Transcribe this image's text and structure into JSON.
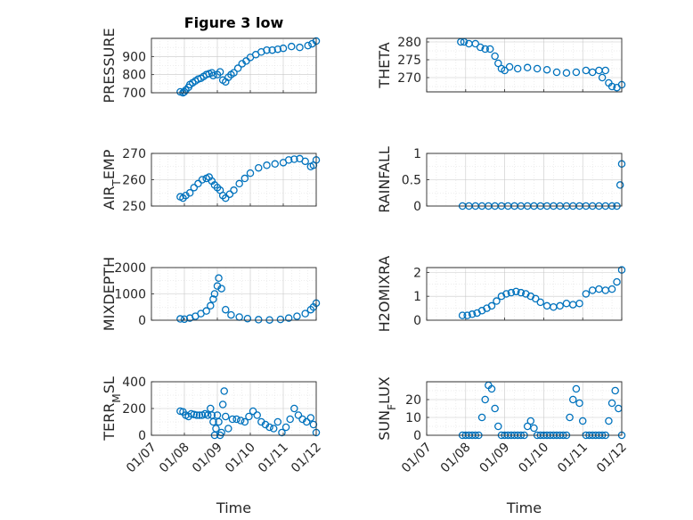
{
  "colors": {
    "marker": "#0072bd",
    "axis": "#262626"
  },
  "chart_data": [
    {
      "type": "scatter",
      "marker": "circle",
      "title": "Figure 3 low",
      "ylabel": "PRESSURE",
      "ylabel_parts": [
        {
          "t": "PRESSURE"
        }
      ],
      "xlabel": "",
      "grid": true,
      "minor_grid": true,
      "xlim": [
        "01/07",
        "01/12"
      ],
      "ylim": [
        700,
        1000
      ],
      "yticks": [
        700,
        800,
        900
      ],
      "yminor": [
        750,
        850,
        950
      ],
      "xticks": [
        "01/07",
        "01/08",
        "01/09",
        "01/10",
        "01/11",
        "01/12"
      ],
      "xticklabels_shown": false,
      "series": [
        {
          "x": [
            "01/07 21:00",
            "01/07 23:00",
            "01/08 00:00",
            "01/08 01:00",
            "01/08 03:00",
            "01/08 04:00",
            "01/08 06:00",
            "01/08 08:00",
            "01/08 10:00",
            "01/08 12:00",
            "01/08 14:00",
            "01/08 16:00",
            "01/08 18:00",
            "01/08 20:00",
            "01/08 21:00",
            "01/09 00:00",
            "01/09 02:00",
            "01/09 04:00",
            "01/09 06:00",
            "01/09 08:00",
            "01/09 10:00",
            "01/09 12:00",
            "01/09 15:00",
            "01/09 18:00",
            "01/09 21:00",
            "01/10 00:00",
            "01/10 04:00",
            "01/10 08:00",
            "01/10 12:00",
            "01/10 16:00",
            "01/10 20:00",
            "01/11 00:00",
            "01/11 06:00",
            "01/11 12:00",
            "01/11 18:00",
            "01/11 21:00",
            "01/12 00:00"
          ],
          "y": [
            705,
            700,
            705,
            715,
            730,
            745,
            755,
            765,
            775,
            780,
            790,
            800,
            805,
            810,
            795,
            800,
            815,
            770,
            760,
            785,
            800,
            810,
            835,
            860,
            875,
            895,
            910,
            925,
            935,
            935,
            940,
            945,
            955,
            950,
            960,
            970,
            985
          ]
        }
      ]
    },
    {
      "type": "scatter",
      "marker": "circle",
      "title": "",
      "ylabel": "THETA",
      "ylabel_parts": [
        {
          "t": "THETA"
        }
      ],
      "xlabel": "",
      "grid": true,
      "minor_grid": true,
      "xlim": [
        "01/07",
        "01/12"
      ],
      "ylim": [
        266,
        281
      ],
      "yticks": [
        270,
        275,
        280
      ],
      "yminor": [
        267.5,
        272.5,
        277.5
      ],
      "xticks": [
        "01/07",
        "01/08",
        "01/09",
        "01/10",
        "01/11",
        "01/12"
      ],
      "xticklabels_shown": false,
      "series": [
        {
          "x": [
            "01/07 21:00",
            "01/07 23:00",
            "01/08 02:00",
            "01/08 06:00",
            "01/08 09:00",
            "01/08 12:00",
            "01/08 15:00",
            "01/08 18:00",
            "01/08 20:00",
            "01/08 22:00",
            "01/09 00:00",
            "01/09 03:00",
            "01/09 08:00",
            "01/09 14:00",
            "01/09 20:00",
            "01/10 02:00",
            "01/10 08:00",
            "01/10 14:00",
            "01/10 20:00",
            "01/11 02:00",
            "01/11 06:00",
            "01/11 10:00",
            "01/11 12:00",
            "01/11 14:00",
            "01/11 16:00",
            "01/11 18:00",
            "01/11 21:00",
            "01/12 00:00"
          ],
          "y": [
            280,
            280,
            279.5,
            279.5,
            278.5,
            278,
            278,
            276,
            274,
            272.5,
            272,
            273,
            272.5,
            272.8,
            272.5,
            272.2,
            271.5,
            271.3,
            271.5,
            272,
            271.5,
            272,
            270,
            272,
            268.5,
            267.5,
            267.2,
            268
          ]
        }
      ]
    },
    {
      "type": "scatter",
      "marker": "circle",
      "title": "",
      "ylabel": "AIR_TEMP",
      "ylabel_parts": [
        {
          "t": "AIR"
        },
        {
          "t": "T",
          "sub": true
        },
        {
          "t": "EMP"
        }
      ],
      "xlabel": "",
      "grid": true,
      "minor_grid": true,
      "xlim": [
        "01/07",
        "01/12"
      ],
      "ylim": [
        250,
        270
      ],
      "yticks": [
        250,
        260,
        270
      ],
      "yminor": [
        255,
        265
      ],
      "xticks": [
        "01/07",
        "01/08",
        "01/09",
        "01/10",
        "01/11",
        "01/12"
      ],
      "xticklabels_shown": false,
      "series": [
        {
          "x": [
            "01/07 21:00",
            "01/07 23:00",
            "01/08 01:00",
            "01/08 04:00",
            "01/08 07:00",
            "01/08 10:00",
            "01/08 13:00",
            "01/08 16:00",
            "01/08 18:00",
            "01/08 20:00",
            "01/08 22:00",
            "01/09 00:00",
            "01/09 02:00",
            "01/09 04:00",
            "01/09 06:00",
            "01/09 09:00",
            "01/09 12:00",
            "01/09 16:00",
            "01/09 20:00",
            "01/10 00:00",
            "01/10 06:00",
            "01/10 12:00",
            "01/10 18:00",
            "01/11 00:00",
            "01/11 04:00",
            "01/11 08:00",
            "01/11 12:00",
            "01/11 16:00",
            "01/11 20:00",
            "01/11 22:00",
            "01/12 00:00"
          ],
          "y": [
            253.5,
            253,
            254,
            255,
            257,
            258.5,
            260,
            260.5,
            261,
            259.5,
            258,
            257,
            256,
            254,
            253,
            254.5,
            256,
            258.5,
            260.5,
            262.5,
            264.5,
            265.5,
            266,
            266.5,
            267.5,
            267.8,
            268,
            267,
            265,
            265.5,
            267.5
          ]
        }
      ]
    },
    {
      "type": "scatter",
      "marker": "circle",
      "title": "",
      "ylabel": "RAINFALL",
      "ylabel_parts": [
        {
          "t": "RAINFALL"
        }
      ],
      "xlabel": "",
      "grid": true,
      "minor_grid": true,
      "xlim": [
        "01/07",
        "01/12"
      ],
      "ylim": [
        0,
        1
      ],
      "yticks": [
        0,
        0.5,
        1
      ],
      "yminor": [
        0.25,
        0.75
      ],
      "xticks": [
        "01/07",
        "01/08",
        "01/09",
        "01/10",
        "01/11",
        "01/12"
      ],
      "xticklabels_shown": false,
      "series": [
        {
          "x": [
            "01/07 22:00",
            "01/08 02:00",
            "01/08 06:00",
            "01/08 10:00",
            "01/08 14:00",
            "01/08 18:00",
            "01/08 22:00",
            "01/09 02:00",
            "01/09 06:00",
            "01/09 10:00",
            "01/09 14:00",
            "01/09 18:00",
            "01/09 22:00",
            "01/10 02:00",
            "01/10 06:00",
            "01/10 10:00",
            "01/10 14:00",
            "01/10 18:00",
            "01/10 22:00",
            "01/11 02:00",
            "01/11 06:00",
            "01/11 10:00",
            "01/11 14:00",
            "01/11 18:00",
            "01/11 21:00",
            "01/11 23:00",
            "01/12 00:00"
          ],
          "y": [
            0,
            0,
            0,
            0,
            0,
            0,
            0,
            0,
            0,
            0,
            0,
            0,
            0,
            0,
            0,
            0,
            0,
            0,
            0,
            0,
            0,
            0,
            0,
            0,
            0,
            0.4,
            0.8
          ]
        }
      ]
    },
    {
      "type": "scatter",
      "marker": "circle",
      "title": "",
      "ylabel": "MIXDEPTH",
      "ylabel_parts": [
        {
          "t": "MIXDEPTH"
        }
      ],
      "xlabel": "",
      "grid": true,
      "minor_grid": true,
      "xlim": [
        "01/07",
        "01/12"
      ],
      "ylim": [
        0,
        2000
      ],
      "yticks": [
        0,
        1000,
        2000
      ],
      "yminor": [
        500,
        1500
      ],
      "xticks": [
        "01/07",
        "01/08",
        "01/09",
        "01/10",
        "01/11",
        "01/12"
      ],
      "xticklabels_shown": false,
      "series": [
        {
          "x": [
            "01/07 21:00",
            "01/08 00:00",
            "01/08 04:00",
            "01/08 08:00",
            "01/08 12:00",
            "01/08 16:00",
            "01/08 19:00",
            "01/08 21:00",
            "01/08 22:00",
            "01/09 00:00",
            "01/09 01:00",
            "01/09 03:00",
            "01/09 06:00",
            "01/09 10:00",
            "01/09 16:00",
            "01/09 22:00",
            "01/10 06:00",
            "01/10 14:00",
            "01/10 22:00",
            "01/11 04:00",
            "01/11 10:00",
            "01/11 16:00",
            "01/11 20:00",
            "01/11 22:00",
            "01/12 00:00"
          ],
          "y": [
            50,
            40,
            80,
            150,
            250,
            350,
            550,
            800,
            1000,
            1300,
            1600,
            1200,
            400,
            200,
            120,
            60,
            20,
            10,
            30,
            80,
            150,
            250,
            400,
            500,
            650
          ]
        }
      ]
    },
    {
      "type": "scatter",
      "marker": "circle",
      "title": "",
      "ylabel": "H2OMIXRA",
      "ylabel_parts": [
        {
          "t": "H2OMIXRA"
        }
      ],
      "xlabel": "",
      "grid": true,
      "minor_grid": true,
      "xlim": [
        "01/07",
        "01/12"
      ],
      "ylim": [
        0,
        2.2
      ],
      "yticks": [
        0,
        1,
        2
      ],
      "yminor": [
        0.5,
        1.5
      ],
      "xticks": [
        "01/07",
        "01/08",
        "01/09",
        "01/10",
        "01/11",
        "01/12"
      ],
      "xticklabels_shown": false,
      "series": [
        {
          "x": [
            "01/07 22:00",
            "01/08 01:00",
            "01/08 04:00",
            "01/08 07:00",
            "01/08 10:00",
            "01/08 13:00",
            "01/08 16:00",
            "01/08 19:00",
            "01/08 22:00",
            "01/09 01:00",
            "01/09 04:00",
            "01/09 07:00",
            "01/09 10:00",
            "01/09 13:00",
            "01/09 16:00",
            "01/09 19:00",
            "01/09 22:00",
            "01/10 02:00",
            "01/10 06:00",
            "01/10 10:00",
            "01/10 14:00",
            "01/10 18:00",
            "01/10 22:00",
            "01/11 02:00",
            "01/11 06:00",
            "01/11 10:00",
            "01/11 14:00",
            "01/11 18:00",
            "01/11 21:00",
            "01/12 00:00"
          ],
          "y": [
            0.2,
            0.2,
            0.25,
            0.3,
            0.4,
            0.5,
            0.6,
            0.8,
            1.0,
            1.1,
            1.15,
            1.2,
            1.15,
            1.1,
            1.0,
            0.9,
            0.75,
            0.6,
            0.55,
            0.6,
            0.7,
            0.65,
            0.7,
            1.1,
            1.25,
            1.3,
            1.25,
            1.3,
            1.6,
            2.1
          ]
        }
      ]
    },
    {
      "type": "scatter",
      "marker": "circle",
      "title": "",
      "ylabel": "TERR_MSL",
      "ylabel_parts": [
        {
          "t": "TERR"
        },
        {
          "t": "M",
          "sub": true
        },
        {
          "t": "SL"
        }
      ],
      "xlabel": "Time",
      "grid": true,
      "minor_grid": true,
      "xlim": [
        "01/07",
        "01/12"
      ],
      "ylim": [
        0,
        400
      ],
      "yticks": [
        0,
        200,
        400
      ],
      "yminor": [
        100,
        300
      ],
      "xticks": [
        "01/07",
        "01/08",
        "01/09",
        "01/10",
        "01/11",
        "01/12"
      ],
      "xticklabels_shown": true,
      "series": [
        {
          "x": [
            "01/07 21:00",
            "01/07 23:00",
            "01/08 01:00",
            "01/08 03:00",
            "01/08 05:00",
            "01/08 07:00",
            "01/08 09:00",
            "01/08 11:00",
            "01/08 13:00",
            "01/08 15:00",
            "01/08 17:00",
            "01/08 19:00",
            "01/08 20:00",
            "01/08 21:00",
            "01/08 22:00",
            "01/08 23:00",
            "01/09 00:00",
            "01/09 01:00",
            "01/09 02:00",
            "01/09 03:00",
            "01/09 04:00",
            "01/09 05:00",
            "01/09 06:00",
            "01/09 08:00",
            "01/09 11:00",
            "01/09 14:00",
            "01/09 17:00",
            "01/09 20:00",
            "01/09 23:00",
            "01/10 02:00",
            "01/10 05:00",
            "01/10 08:00",
            "01/10 11:00",
            "01/10 14:00",
            "01/10 17:00",
            "01/10 20:00",
            "01/10 23:00",
            "01/11 02:00",
            "01/11 05:00",
            "01/11 08:00",
            "01/11 11:00",
            "01/11 14:00",
            "01/11 17:00",
            "01/11 20:00",
            "01/11 22:00",
            "01/12 00:00"
          ],
          "y": [
            180,
            175,
            150,
            140,
            160,
            155,
            150,
            150,
            150,
            160,
            150,
            200,
            150,
            100,
            0,
            50,
            150,
            100,
            0,
            20,
            230,
            330,
            140,
            50,
            120,
            120,
            110,
            100,
            140,
            180,
            150,
            100,
            80,
            60,
            50,
            100,
            20,
            60,
            120,
            200,
            150,
            120,
            100,
            130,
            80,
            20
          ]
        }
      ]
    },
    {
      "type": "scatter",
      "marker": "circle",
      "title": "",
      "ylabel": "SUN_FLUX",
      "ylabel_parts": [
        {
          "t": "SUN"
        },
        {
          "t": "F",
          "sub": true
        },
        {
          "t": "LUX"
        }
      ],
      "xlabel": "Time",
      "grid": true,
      "minor_grid": true,
      "xlim": [
        "01/07",
        "01/12"
      ],
      "ylim": [
        0,
        30
      ],
      "yticks": [
        0,
        10,
        20
      ],
      "yminor": [
        5,
        15,
        25
      ],
      "xticks": [
        "01/07",
        "01/08",
        "01/09",
        "01/10",
        "01/11",
        "01/12"
      ],
      "xticklabels_shown": true,
      "series": [
        {
          "x": [
            "01/07 22:00",
            "01/08 00:00",
            "01/08 02:00",
            "01/08 04:00",
            "01/08 06:00",
            "01/08 08:00",
            "01/08 10:00",
            "01/08 12:00",
            "01/08 14:00",
            "01/08 16:00",
            "01/08 18:00",
            "01/08 20:00",
            "01/08 22:00",
            "01/09 00:00",
            "01/09 02:00",
            "01/09 04:00",
            "01/09 06:00",
            "01/09 08:00",
            "01/09 10:00",
            "01/09 12:00",
            "01/09 14:00",
            "01/09 16:00",
            "01/09 18:00",
            "01/09 20:00",
            "01/09 22:00",
            "01/10 00:00",
            "01/10 02:00",
            "01/10 04:00",
            "01/10 06:00",
            "01/10 08:00",
            "01/10 10:00",
            "01/10 12:00",
            "01/10 14:00",
            "01/10 16:00",
            "01/10 18:00",
            "01/10 20:00",
            "01/10 22:00",
            "01/11 00:00",
            "01/11 02:00",
            "01/11 04:00",
            "01/11 06:00",
            "01/11 08:00",
            "01/11 10:00",
            "01/11 12:00",
            "01/11 14:00",
            "01/11 16:00",
            "01/11 18:00",
            "01/11 20:00",
            "01/11 22:00",
            "01/12 00:00"
          ],
          "y": [
            0,
            0,
            0,
            0,
            0,
            0,
            10,
            20,
            28,
            26,
            15,
            5,
            0,
            0,
            0,
            0,
            0,
            0,
            0,
            0,
            5,
            8,
            4,
            0,
            0,
            0,
            0,
            0,
            0,
            0,
            0,
            0,
            0,
            10,
            20,
            26,
            18,
            8,
            0,
            0,
            0,
            0,
            0,
            0,
            0,
            8,
            18,
            25,
            15,
            0
          ]
        }
      ]
    }
  ]
}
